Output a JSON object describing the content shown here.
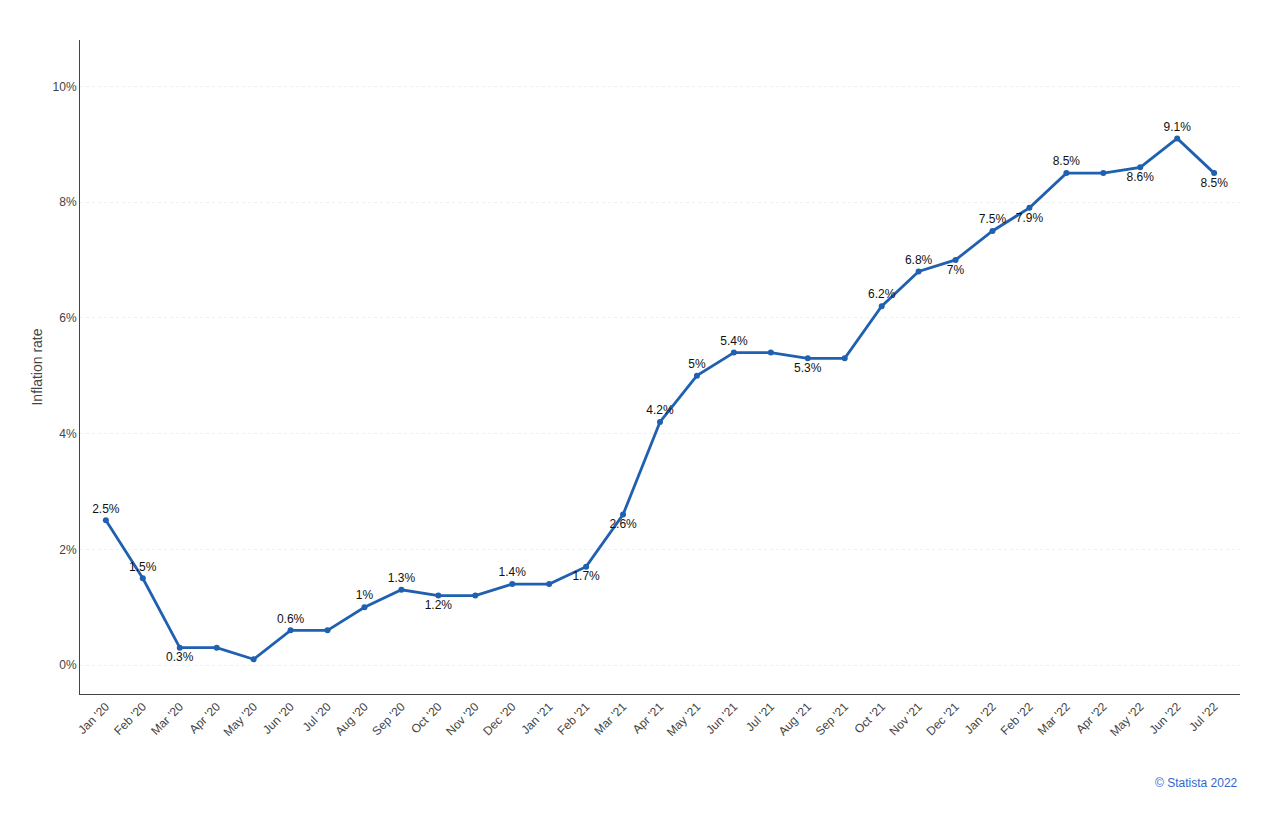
{
  "chart_data": {
    "type": "line",
    "ylabel": "Inflation rate",
    "categories": [
      "Jan '20",
      "Feb '20",
      "Mar '20",
      "Apr '20",
      "May '20",
      "Jun '20",
      "Jul '20",
      "Aug '20",
      "Sep '20",
      "Oct '20",
      "Nov '20",
      "Dec '20",
      "Jan '21",
      "Feb '21",
      "Mar '21",
      "Apr '21",
      "May '21",
      "Jun '21",
      "Jul '21",
      "Aug '21",
      "Sep '21",
      "Oct '21",
      "Nov '21",
      "Dec '21",
      "Jan '22",
      "Feb '22",
      "Mar '22",
      "Apr '22",
      "May '22",
      "Jun '22",
      "Jul '22"
    ],
    "values": [
      2.5,
      1.5,
      0.3,
      0.3,
      0.1,
      0.6,
      0.6,
      1.0,
      1.3,
      1.2,
      1.2,
      1.4,
      1.4,
      1.7,
      2.6,
      4.2,
      5.0,
      5.4,
      5.4,
      5.3,
      5.3,
      6.2,
      6.8,
      7.0,
      7.5,
      7.9,
      8.5,
      8.5,
      8.6,
      9.1,
      8.5
    ],
    "value_labels": [
      "2.5%",
      "1.5%",
      "0.3%",
      null,
      null,
      "0.6%",
      null,
      "1%",
      "1.3%",
      "1.2%",
      null,
      "1.4%",
      null,
      "1.7%",
      "2.6%",
      "4.2%",
      "5%",
      "5.4%",
      null,
      "5.3%",
      null,
      "6.2%",
      "6.8%",
      "7%",
      "7.5%",
      "7.9%",
      "8.5%",
      null,
      "8.6%",
      "9.1%",
      "8.5%"
    ],
    "data_labels": true,
    "color": "#2060b0",
    "ylim": [
      -0.5,
      10.8
    ],
    "yticks": [
      {
        "value": 0,
        "label": "0%"
      },
      {
        "value": 2,
        "label": "2%"
      },
      {
        "value": 4,
        "label": "4%"
      },
      {
        "value": 6,
        "label": "6%"
      },
      {
        "value": 8,
        "label": "8%"
      },
      {
        "value": 10,
        "label": "10%"
      }
    ],
    "grid": true,
    "annotations": [
      "© Statista 2022"
    ]
  }
}
